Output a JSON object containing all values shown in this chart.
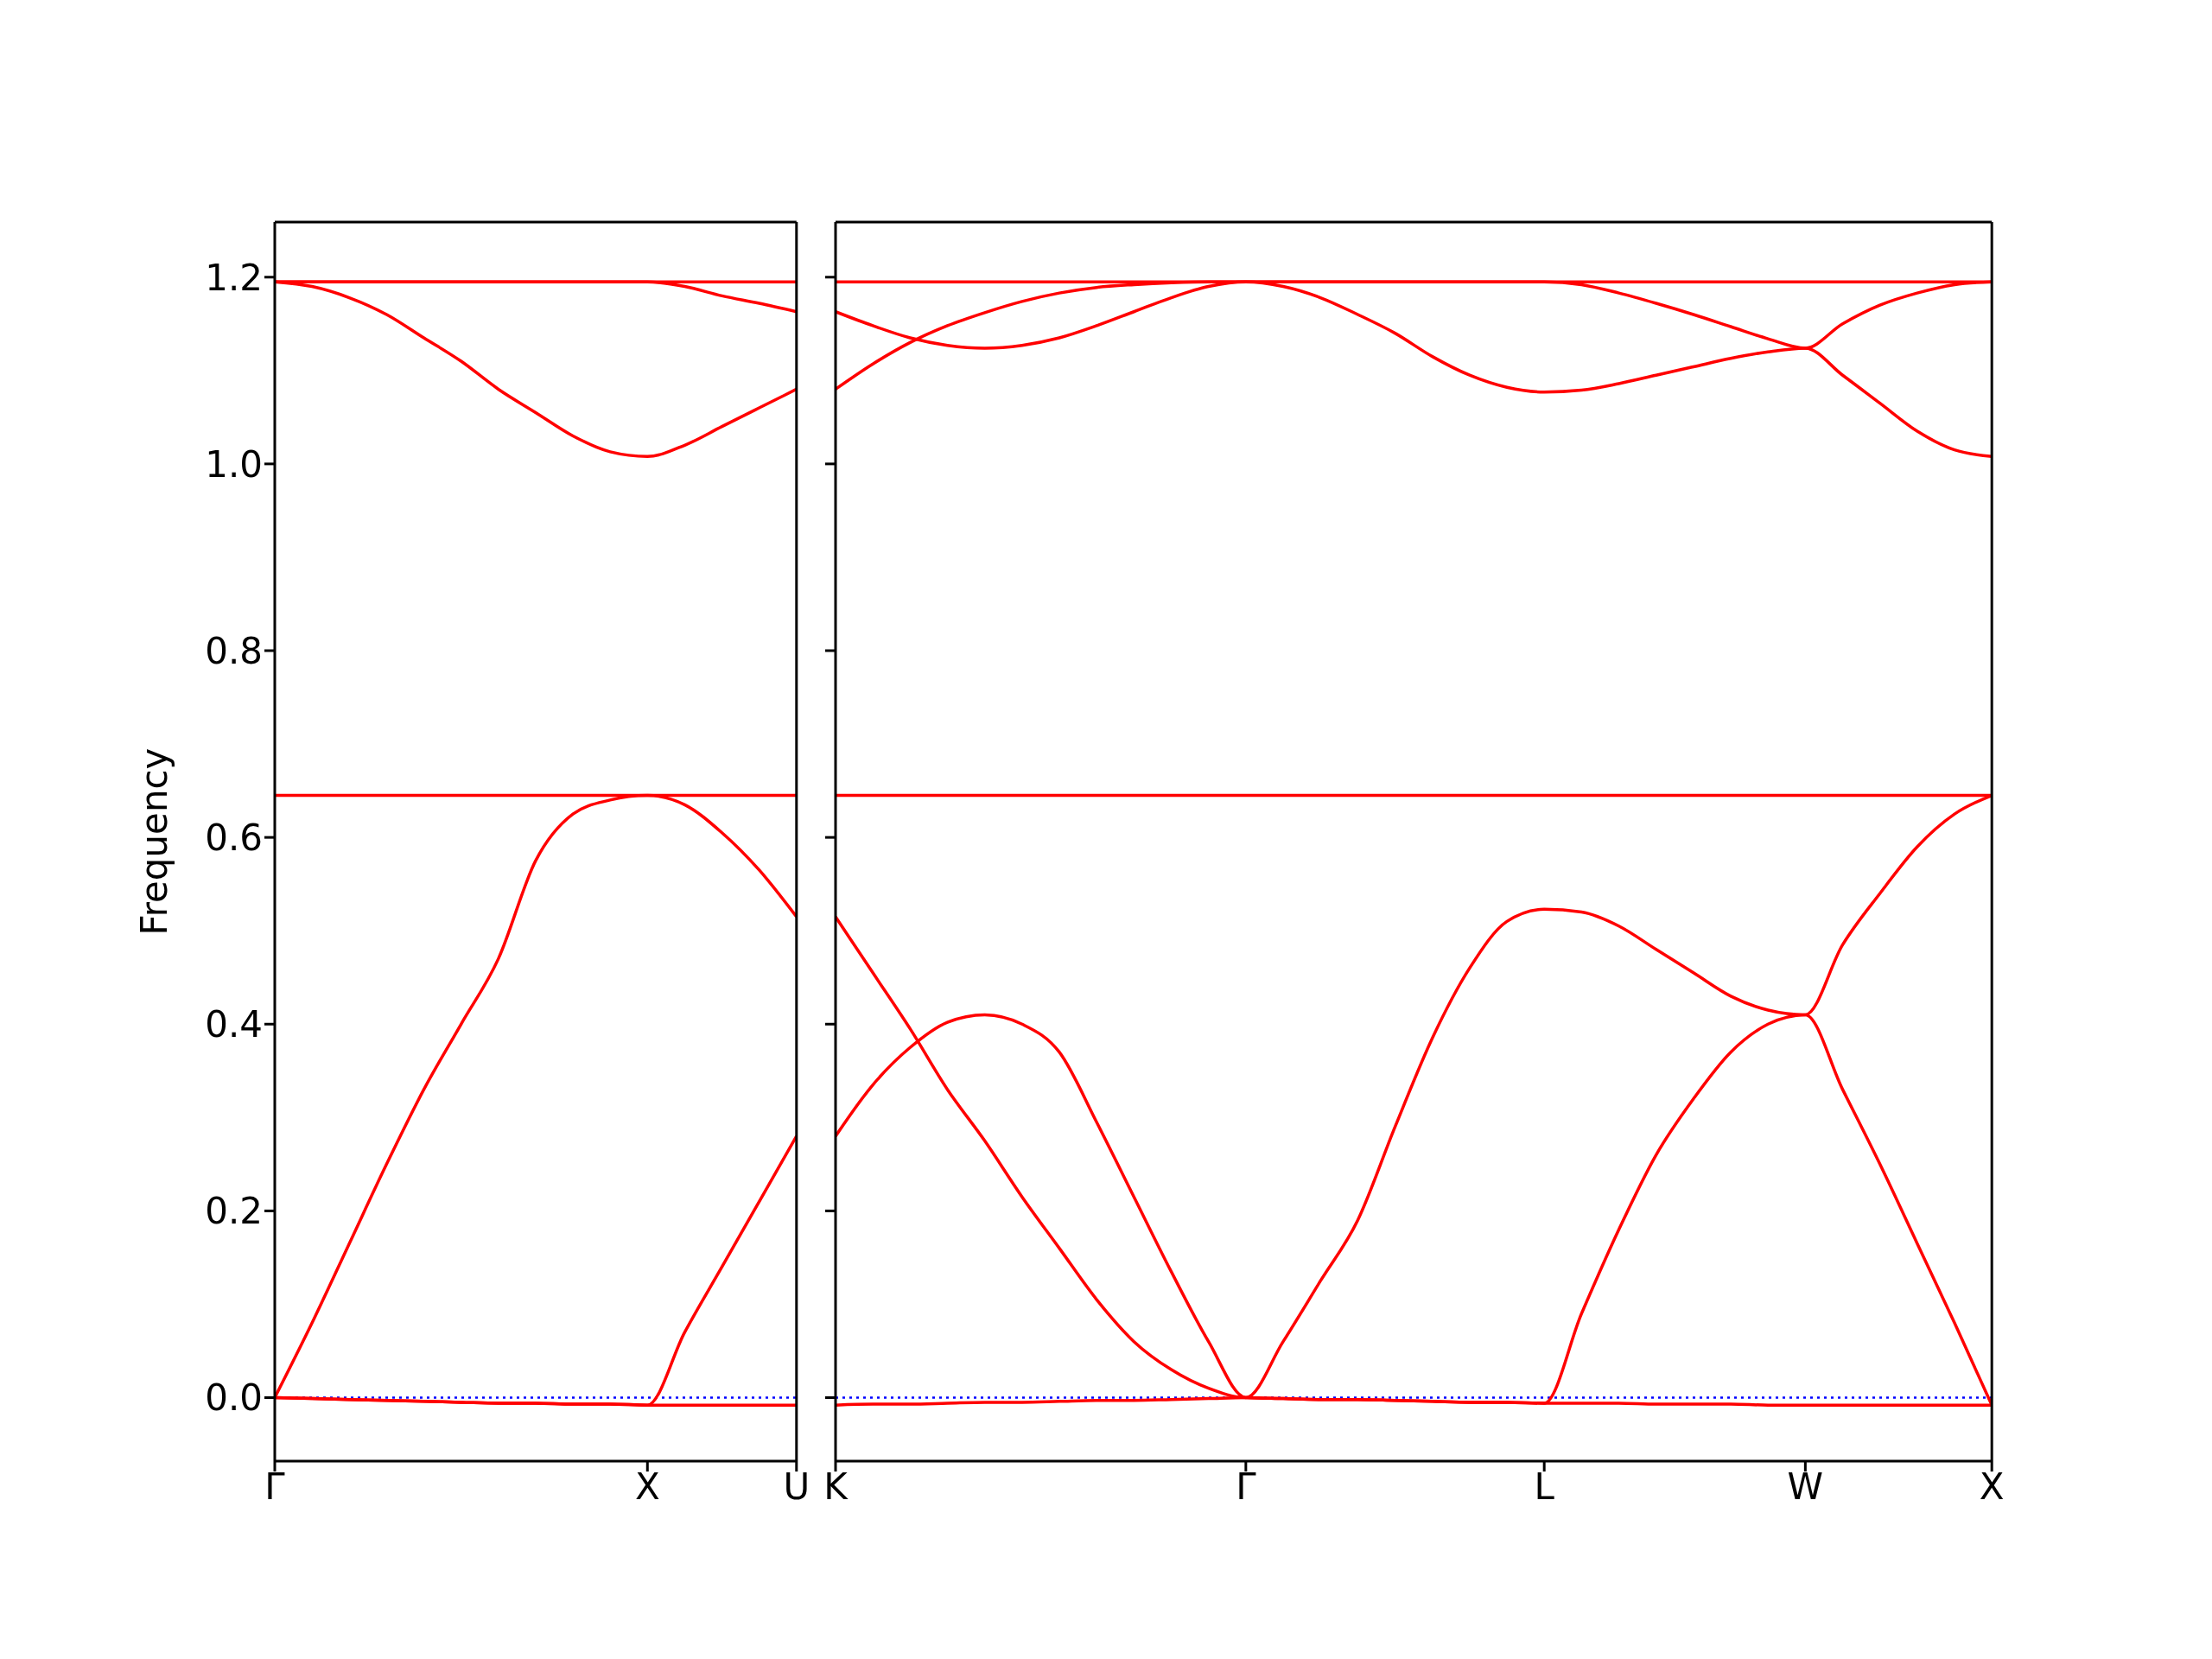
{
  "chart_data": [
    {
      "type": "line",
      "ylabel": "Frequency",
      "categories": [
        "Γ",
        null,
        null,
        null,
        null,
        null,
        null,
        null,
        null,
        null,
        "X",
        null,
        null,
        null,
        "U"
      ],
      "ylim": [
        -0.068,
        1.259
      ],
      "yticks": [
        {
          "value": 0,
          "label": "0.0"
        },
        {
          "value": 0.2,
          "label": "0.2"
        },
        {
          "value": 0.4,
          "label": "0.4"
        },
        {
          "value": 0.6,
          "label": "0.6"
        },
        {
          "value": 0.8,
          "label": "0.8"
        },
        {
          "value": 1,
          "label": "1.0"
        },
        {
          "value": 1.2,
          "label": "1.2"
        }
      ],
      "ref_lines": [
        {
          "axis": "y",
          "value": 0,
          "color": "#0000ff",
          "line_style": "dotted"
        }
      ],
      "series": [
        {
          "color": "#ff0000",
          "values": [
            0,
            -0.001,
            -0.002,
            -0.003,
            -0.004,
            -0.005,
            -0.006,
            -0.006,
            -0.007,
            -0.007,
            -0.008,
            -0.008,
            -0.008,
            -0.008,
            -0.008
          ]
        },
        {
          "color": "#ff0000",
          "values": [
            0,
            0.08,
            0.165,
            0.25,
            0.33,
            0.4,
            0.47,
            0.575,
            0.625,
            0.64,
            0.645,
            0.635,
            0.605,
            0.565,
            0.515
          ]
        },
        {
          "color": "#ff0000",
          "values": [
            0,
            -0.001,
            -0.002,
            -0.003,
            -0.004,
            -0.005,
            -0.006,
            -0.006,
            -0.007,
            -0.007,
            -0.008,
            0.07,
            0.14,
            0.21,
            0.28
          ]
        },
        {
          "color": "#ff0000",
          "values": [
            0.645,
            0.645,
            0.645,
            0.645,
            0.645,
            0.645,
            0.645,
            0.645,
            0.645,
            0.645,
            0.645,
            0.645,
            0.645,
            0.645,
            0.645
          ]
        },
        {
          "color": "#ff0000",
          "values": [
            1.195,
            1.195,
            1.195,
            1.195,
            1.195,
            1.195,
            1.195,
            1.195,
            1.195,
            1.195,
            1.195,
            1.195,
            1.195,
            1.195,
            1.195
          ]
        },
        {
          "color": "#ff0000",
          "values": [
            1.195,
            1.19,
            1.178,
            1.16,
            1.135,
            1.11,
            1.08,
            1.055,
            1.03,
            1.013,
            1.008,
            1.02,
            1.04,
            1.06,
            1.08
          ]
        },
        {
          "color": "#ff0000",
          "values": [
            1.195,
            1.195,
            1.195,
            1.195,
            1.195,
            1.195,
            1.195,
            1.195,
            1.195,
            1.195,
            1.195,
            1.19,
            1.18,
            1.172,
            1.163
          ]
        }
      ]
    },
    {
      "type": "line",
      "tick_labels": "x",
      "categories": [
        "K",
        null,
        null,
        null,
        null,
        null,
        null,
        null,
        null,
        null,
        null,
        "Γ",
        null,
        null,
        null,
        null,
        null,
        null,
        null,
        "L",
        null,
        null,
        null,
        null,
        null,
        null,
        "W",
        null,
        null,
        null,
        null,
        "X"
      ],
      "ylim": [
        -0.068,
        1.259
      ],
      "yticks": [
        {
          "value": 0,
          "label": null
        },
        {
          "value": 0.2,
          "label": null
        },
        {
          "value": 0.4,
          "label": null
        },
        {
          "value": 0.6,
          "label": null
        },
        {
          "value": 0.8,
          "label": null
        },
        {
          "value": 1,
          "label": null
        },
        {
          "value": 1.2,
          "label": null
        }
      ],
      "ref_lines": [
        {
          "axis": "y",
          "value": 0,
          "color": "#0000ff",
          "line_style": "dotted"
        }
      ],
      "series": [
        {
          "color": "#ff0000",
          "values": [
            -0.008,
            -0.007,
            -0.007,
            -0.006,
            -0.005,
            -0.005,
            -0.004,
            -0.003,
            -0.003,
            -0.002,
            -0.001,
            0,
            -0.001,
            -0.002,
            -0.002,
            -0.003,
            -0.004,
            -0.005,
            -0.005,
            -0.006,
            -0.006,
            -0.006,
            -0.007,
            -0.007,
            -0.007,
            -0.008,
            -0.008,
            -0.008,
            -0.008,
            -0.008,
            -0.008,
            -0.008
          ]
        },
        {
          "color": "#ff0000",
          "values": [
            0.515,
            0.455,
            0.395,
            0.33,
            0.275,
            0.215,
            0.16,
            0.105,
            0.06,
            0.03,
            0.01,
            0,
            0.06,
            0.125,
            0.19,
            0.29,
            0.385,
            0.46,
            0.51,
            0.523,
            0.52,
            0.505,
            0.48,
            0.455,
            0.43,
            0.415,
            0.41,
            0.485,
            0.54,
            0.59,
            0.625,
            0.645
          ]
        },
        {
          "color": "#ff0000",
          "values": [
            0.28,
            0.335,
            0.375,
            0.402,
            0.41,
            0.4,
            0.37,
            0.295,
            0.215,
            0.135,
            0.06,
            0,
            -0.001,
            -0.002,
            -0.002,
            -0.003,
            -0.004,
            -0.005,
            -0.005,
            -0.006,
            0.09,
            0.18,
            0.26,
            0.32,
            0.37,
            0.4,
            0.41,
            0.33,
            0.25,
            0.165,
            0.08,
            -0.008
          ]
        },
        {
          "color": "#ff0000",
          "values": [
            0.645,
            0.645,
            0.645,
            0.645,
            0.645,
            0.645,
            0.645,
            0.645,
            0.645,
            0.645,
            0.645,
            0.645,
            0.645,
            0.645,
            0.645,
            0.645,
            0.645,
            0.645,
            0.645,
            0.645,
            0.645,
            0.645,
            0.645,
            0.645,
            0.645,
            0.645,
            0.645,
            0.645,
            0.645,
            0.645,
            0.645,
            0.645
          ]
        },
        {
          "color": "#ff0000",
          "values": [
            1.195,
            1.195,
            1.195,
            1.195,
            1.195,
            1.195,
            1.195,
            1.195,
            1.195,
            1.195,
            1.195,
            1.195,
            1.195,
            1.195,
            1.195,
            1.195,
            1.195,
            1.195,
            1.195,
            1.195,
            1.195,
            1.195,
            1.195,
            1.195,
            1.195,
            1.195,
            1.195,
            1.195,
            1.195,
            1.195,
            1.195,
            1.195
          ]
        },
        {
          "color": "#ff0000",
          "values": [
            1.163,
            1.148,
            1.135,
            1.127,
            1.124,
            1.127,
            1.135,
            1.148,
            1.163,
            1.178,
            1.19,
            1.195,
            1.19,
            1.178,
            1.16,
            1.14,
            1.115,
            1.095,
            1.082,
            1.077,
            1.079,
            1.086,
            1.095,
            1.104,
            1.113,
            1.12,
            1.124,
            1.095,
            1.065,
            1.035,
            1.015,
            1.008
          ]
        },
        {
          "color": "#ff0000",
          "values": [
            1.08,
            1.107,
            1.13,
            1.148,
            1.162,
            1.174,
            1.183,
            1.189,
            1.192,
            1.194,
            1.195,
            1.195,
            1.195,
            1.195,
            1.195,
            1.195,
            1.195,
            1.195,
            1.195,
            1.195,
            1.192,
            1.183,
            1.172,
            1.16,
            1.147,
            1.134,
            1.124,
            1.15,
            1.17,
            1.183,
            1.192,
            1.195
          ]
        }
      ]
    }
  ]
}
